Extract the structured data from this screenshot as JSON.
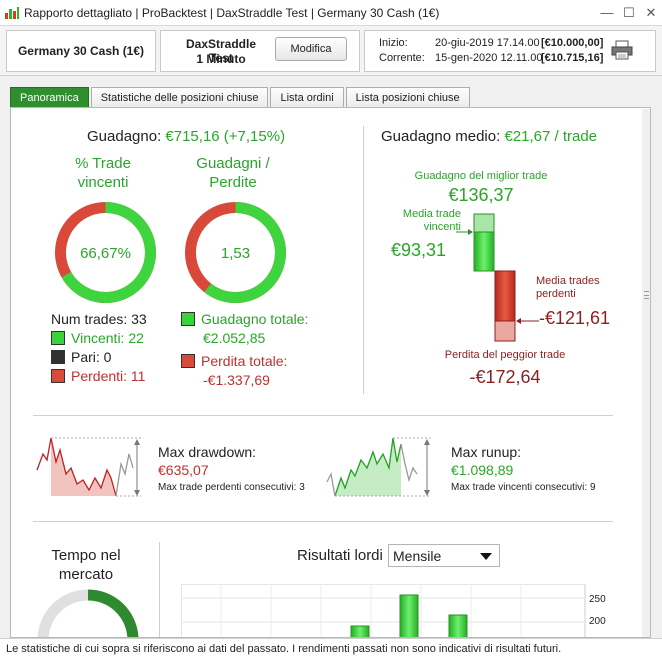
{
  "window": {
    "title": "Rapporto dettagliato | ProBacktest | DaxStraddle Test | Germany 30 Cash (1€)",
    "minimize": "—",
    "maximize": "☐",
    "close": "✕"
  },
  "header": {
    "instrument": "Germany 30 Cash (1€)",
    "strategy_name": "DaxStraddle Test",
    "strategy_interval": "1 Minuto",
    "modify_label": "Modifica",
    "start_label": "Inizio:",
    "start_date": "20-giu-2019 17.14.00",
    "start_amount": "[€10.000,00]",
    "current_label": "Corrente:",
    "current_date": "15-gen-2020 12.11.00",
    "current_amount": "[€10.715,16]"
  },
  "tabs": [
    {
      "label": "Panoramica",
      "active": true
    },
    {
      "label": "Statistiche delle posizioni chiuse",
      "active": false
    },
    {
      "label": "Lista ordini",
      "active": false
    },
    {
      "label": "Lista posizioni chiuse",
      "active": false
    }
  ],
  "summary": {
    "gain_label": "Guadagno:",
    "gain_value": "€715,16 (+7,15%)",
    "win_pct_title_1": "% Trade",
    "win_pct_title_2": "vincenti",
    "win_pct_value": "66,67%",
    "win_fraction": 0.6667,
    "gains_losses_title_1": "Guadagni /",
    "gains_losses_title_2": "Perdite",
    "gains_losses_value": "1,53",
    "gains_fraction": 0.6055,
    "num_trades": "Num trades: 33",
    "winners": "Vincenti: 22",
    "even": "Pari: 0",
    "losers": "Perdenti: 11",
    "total_gain_label": "Guadagno totale:",
    "total_gain_value": "€2.052,85",
    "total_loss_label": "Perdita totale:",
    "total_loss_value": "-€1.337,69"
  },
  "avg": {
    "title_label": "Guadagno medio:",
    "title_value": "€21,67 / trade",
    "best_label": "Guadagno del miglior trade",
    "best_value": "€136,37",
    "avg_win_label_1": "Media trade",
    "avg_win_label_2": "vincenti",
    "avg_win_value": "€93,31",
    "avg_loss_label_1": "Media trades",
    "avg_loss_label_2": "perdenti",
    "avg_loss_value": "-€121,61",
    "worst_label": "Perdita del peggior trade",
    "worst_value": "-€172,64"
  },
  "drawdown": {
    "label": "Max drawdown:",
    "value": "€635,07",
    "consec_label": "Max trade perdenti consecutivi:",
    "consec_value": "3"
  },
  "runup": {
    "label": "Max runup:",
    "value": "€1.098,89",
    "consec_label": "Max trade vincenti consecutivi:",
    "consec_value": "9"
  },
  "time_in_market": {
    "title_1": "Tempo nel",
    "title_2": "mercato"
  },
  "gross_results": {
    "label": "Risultati lordi",
    "period": "Mensile",
    "y_ticks": [
      "250",
      "200"
    ]
  },
  "footer": "Le statistiche di cui sopra si riferiscono ai dati del passato. I rendimenti passati non sono indicativi di risultati futuri.",
  "colors": {
    "green": "#2aa52a",
    "red": "#c03030",
    "dark_red": "#8c1f1f",
    "tab_active": "#2f8f2f"
  }
}
